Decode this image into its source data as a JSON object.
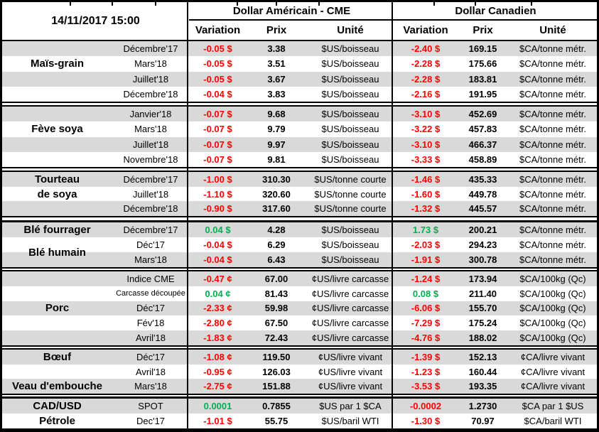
{
  "header": {
    "timestamp": "14/11/2017 15:00",
    "us_title": "Dollar Américain - CME",
    "ca_title": "Dollar Canadien",
    "col_variation": "Variation",
    "col_prix": "Prix",
    "col_unite": "Unité"
  },
  "colors": {
    "negative": "#FF0000",
    "positive": "#00B050",
    "row_shade": "#D9D9D9",
    "border": "#000000"
  },
  "sections": [
    {
      "name": "mais-grain",
      "rows": [
        {
          "cat": "",
          "month": "Décembre'17",
          "us_var": "-0.05 $",
          "us_prix": "3.38",
          "us_unit": "$US/boisseau",
          "ca_var": "-2.40 $",
          "ca_prix": "169.15",
          "ca_unit": "$CA/tonne métr.",
          "shade": true
        },
        {
          "cat": "Maïs-grain",
          "month": "Mars'18",
          "us_var": "-0.05 $",
          "us_prix": "3.51",
          "us_unit": "$US/boisseau",
          "ca_var": "-2.28 $",
          "ca_prix": "175.66",
          "ca_unit": "$CA/tonne métr.",
          "shade": false
        },
        {
          "cat": "",
          "month": "Juillet'18",
          "us_var": "-0.05 $",
          "us_prix": "3.67",
          "us_unit": "$US/boisseau",
          "ca_var": "-2.28 $",
          "ca_prix": "183.81",
          "ca_unit": "$CA/tonne métr.",
          "shade": true
        },
        {
          "cat": "",
          "month": "Décembre'18",
          "us_var": "-0.04 $",
          "us_prix": "3.83",
          "us_unit": "$US/boisseau",
          "ca_var": "-2.16 $",
          "ca_prix": "191.95",
          "ca_unit": "$CA/tonne métr.",
          "shade": false
        }
      ]
    },
    {
      "name": "feve-soya",
      "rows": [
        {
          "cat": "",
          "month": "Janvier'18",
          "us_var": "-0.07 $",
          "us_prix": "9.68",
          "us_unit": "$US/boisseau",
          "ca_var": "-3.10 $",
          "ca_prix": "452.69",
          "ca_unit": "$CA/tonne métr.",
          "shade": true
        },
        {
          "cat": "Fève soya",
          "month": "Mars'18",
          "us_var": "-0.07 $",
          "us_prix": "9.79",
          "us_unit": "$US/boisseau",
          "ca_var": "-3.22 $",
          "ca_prix": "457.83",
          "ca_unit": "$CA/tonne métr.",
          "shade": false
        },
        {
          "cat": "",
          "month": "Juillet'18",
          "us_var": "-0.07 $",
          "us_prix": "9.97",
          "us_unit": "$US/boisseau",
          "ca_var": "-3.10 $",
          "ca_prix": "466.37",
          "ca_unit": "$CA/tonne métr.",
          "shade": true
        },
        {
          "cat": "",
          "month": "Novembre'18",
          "us_var": "-0.07 $",
          "us_prix": "9.81",
          "us_unit": "$US/boisseau",
          "ca_var": "-3.33 $",
          "ca_prix": "458.89",
          "ca_unit": "$CA/tonne métr.",
          "shade": false
        }
      ]
    },
    {
      "name": "tourteau-de-soya",
      "rows": [
        {
          "cat": "Tourteau",
          "month": "Décembre'17",
          "us_var": "-1.00 $",
          "us_prix": "310.30",
          "us_unit": "$US/tonne courte",
          "ca_var": "-1.46 $",
          "ca_prix": "435.33",
          "ca_unit": "$CA/tonne métr.",
          "shade": true
        },
        {
          "cat": "de soya",
          "month": "Juillet'18",
          "us_var": "-1.10 $",
          "us_prix": "320.60",
          "us_unit": "$US/tonne courte",
          "ca_var": "-1.60 $",
          "ca_prix": "449.78",
          "ca_unit": "$CA/tonne métr.",
          "shade": false
        },
        {
          "cat": "",
          "month": "Décembre'18",
          "us_var": "-0.90 $",
          "us_prix": "317.60",
          "us_unit": "$US/tonne courte",
          "ca_var": "-1.32 $",
          "ca_prix": "445.57",
          "ca_unit": "$CA/tonne métr.",
          "shade": true
        }
      ]
    },
    {
      "name": "ble",
      "rows": [
        {
          "cat": "Blé fourrager",
          "month": "Décembre'17",
          "us_var": "0.04 $",
          "us_prix": "4.28",
          "us_unit": "$US/boisseau",
          "ca_var": "1.73 $",
          "ca_prix": "200.21",
          "ca_unit": "$CA/tonne métr.",
          "shade": true
        },
        {
          "cat": "Blé humain",
          "month": "Déc'17",
          "us_var": "-0.04 $",
          "us_prix": "6.29",
          "us_unit": "$US/boisseau",
          "ca_var": "-2.03 $",
          "ca_prix": "294.23",
          "ca_unit": "$CA/tonne métr.",
          "shade": false,
          "cat_straddle": true
        },
        {
          "cat": "",
          "month": "Mars'18",
          "us_var": "-0.04 $",
          "us_prix": "6.43",
          "us_unit": "$US/boisseau",
          "ca_var": "-1.91 $",
          "ca_prix": "300.78",
          "ca_unit": "$CA/tonne métr.",
          "shade": true,
          "cat_white": true
        }
      ]
    },
    {
      "name": "porc",
      "rows": [
        {
          "cat": "",
          "month": "Indice CME",
          "us_var": "-0.47 ¢",
          "us_prix": "67.00",
          "us_unit": "¢US/livre carcasse",
          "ca_var": "-1.24 $",
          "ca_prix": "173.94",
          "ca_unit": "$CA/100kg (Qc)",
          "shade": true
        },
        {
          "cat": "",
          "month": "Carcasse découpée",
          "us_var": "0.04 ¢",
          "us_prix": "81.43",
          "us_unit": "¢US/livre carcasse",
          "ca_var": "0.08 $",
          "ca_prix": "211.40",
          "ca_unit": "$CA/100kg (Qc)",
          "shade": false,
          "month_small": true
        },
        {
          "cat": "Porc",
          "month": "Déc'17",
          "us_var": "-2.33 ¢",
          "us_prix": "59.98",
          "us_unit": "¢US/livre carcasse",
          "ca_var": "-6.06 $",
          "ca_prix": "155.70",
          "ca_unit": "$CA/100kg (Qc)",
          "shade": true
        },
        {
          "cat": "",
          "month": "Fév'18",
          "us_var": "-2.80 ¢",
          "us_prix": "67.50",
          "us_unit": "¢US/livre carcasse",
          "ca_var": "-7.29 $",
          "ca_prix": "175.24",
          "ca_unit": "$CA/100kg (Qc)",
          "shade": false
        },
        {
          "cat": "",
          "month": "Avril'18",
          "us_var": "-1.83 ¢",
          "us_prix": "72.43",
          "us_unit": "¢US/livre carcasse",
          "ca_var": "-4.76 $",
          "ca_prix": "188.02",
          "ca_unit": "$CA/100kg (Qc)",
          "shade": true
        }
      ]
    },
    {
      "name": "boeuf-veau",
      "rows": [
        {
          "cat": "Bœuf",
          "month": "Déc'17",
          "us_var": "-1.08 ¢",
          "us_prix": "119.50",
          "us_unit": "¢US/livre vivant",
          "ca_var": "-1.39 $",
          "ca_prix": "152.13",
          "ca_unit": "¢CA/livre vivant",
          "shade": true
        },
        {
          "cat": "",
          "month": "Avril'18",
          "us_var": "-0.95 ¢",
          "us_prix": "126.03",
          "us_unit": "¢US/livre vivant",
          "ca_var": "-1.23 $",
          "ca_prix": "160.44",
          "ca_unit": "¢CA/livre vivant",
          "shade": false
        },
        {
          "cat": "Veau d'embouche",
          "month": "Mars'18",
          "us_var": "-2.75 ¢",
          "us_prix": "151.88",
          "us_unit": "¢US/livre vivant",
          "ca_var": "-3.53 $",
          "ca_prix": "193.35",
          "ca_unit": "¢CA/livre vivant",
          "shade": true
        }
      ]
    },
    {
      "name": "cadusd-petrole",
      "rows": [
        {
          "cat": "CAD/USD",
          "month": "SPOT",
          "us_var": "0.0001",
          "us_prix": "0.7855",
          "us_unit": "$US par 1 $CA",
          "ca_var": "-0.0002",
          "ca_prix": "1.2730",
          "ca_unit": "$CA par 1 $US",
          "shade": true
        },
        {
          "cat": "Pétrole",
          "month": "Dec'17",
          "us_var": "-1.01 $",
          "us_prix": "55.75",
          "us_unit": "$US/baril WTI",
          "ca_var": "-1.30 $",
          "ca_prix": "70.97",
          "ca_unit": "$CA/baril WTI",
          "shade": false
        }
      ]
    }
  ]
}
